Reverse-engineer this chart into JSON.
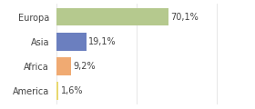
{
  "categories": [
    "Europa",
    "Asia",
    "Africa",
    "America"
  ],
  "values": [
    70.1,
    19.1,
    9.2,
    1.6
  ],
  "labels": [
    "70,1%",
    "19,1%",
    "9,2%",
    "1,6%"
  ],
  "bar_colors": [
    "#b5c98e",
    "#6b7fbf",
    "#f0aa72",
    "#e8d870"
  ],
  "background_color": "#ffffff",
  "xlim": [
    0,
    105
  ],
  "label_fontsize": 7.0,
  "category_fontsize": 7.0,
  "bar_height": 0.72
}
